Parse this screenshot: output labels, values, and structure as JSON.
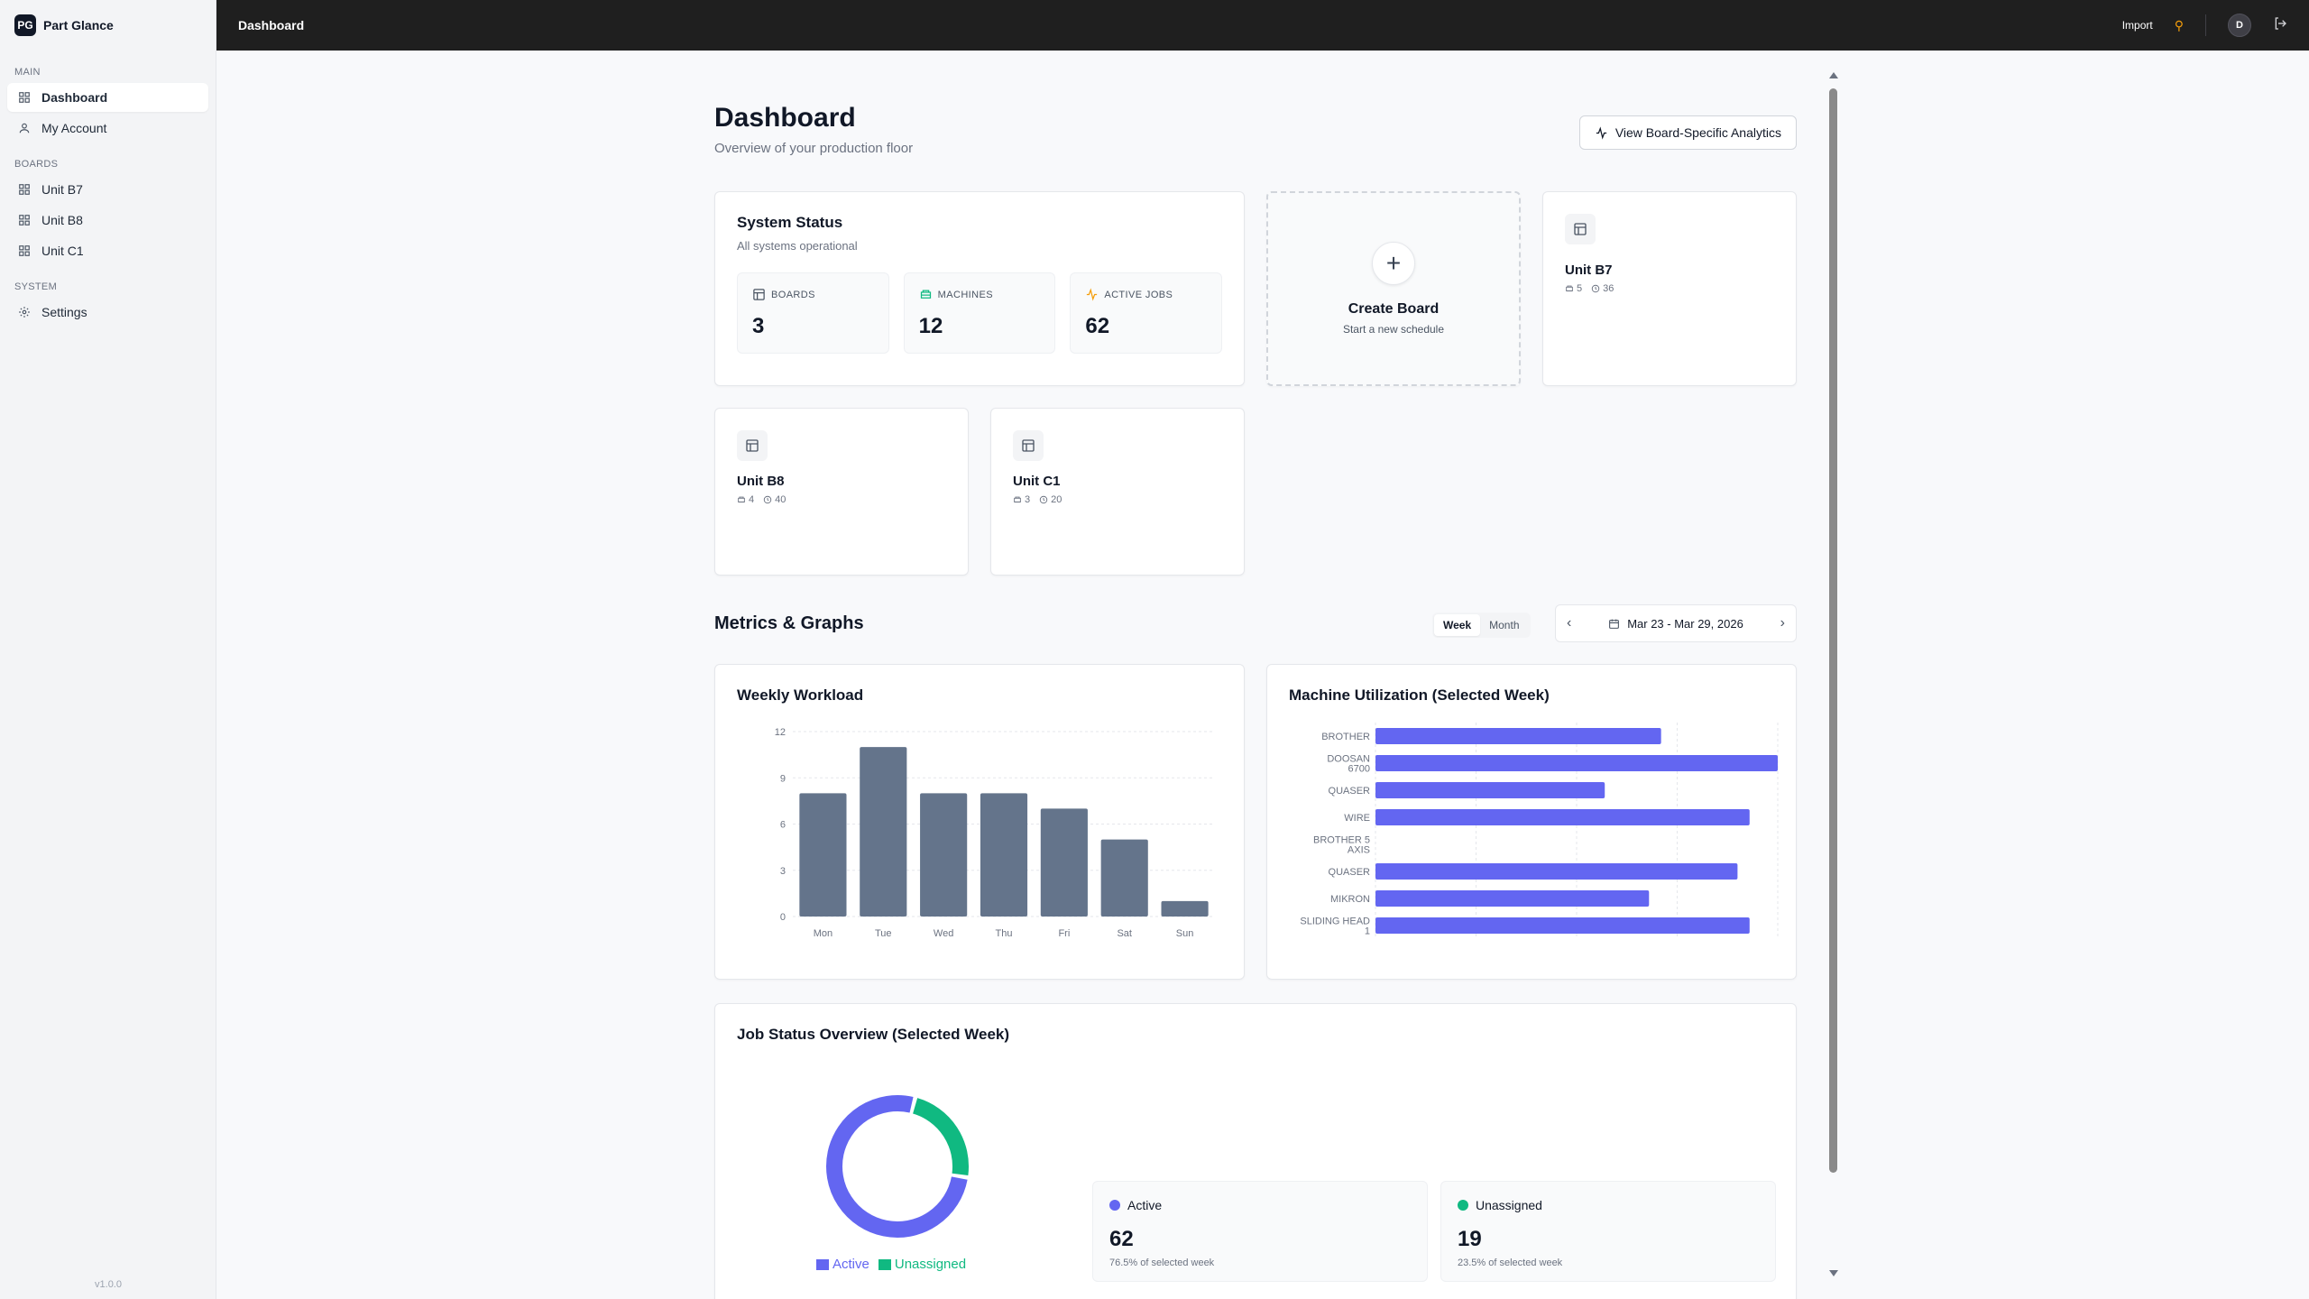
{
  "app": {
    "logo": "PG",
    "name": "Part Glance",
    "version": "v1.0.0"
  },
  "sidebar": {
    "main_label": "MAIN",
    "main_items": [
      {
        "label": "Dashboard",
        "icon": "grid-icon"
      },
      {
        "label": "My Account",
        "icon": "user-icon"
      }
    ],
    "boards_label": "BOARDS",
    "board_items": [
      {
        "label": "Unit B7"
      },
      {
        "label": "Unit B8"
      },
      {
        "label": "Unit C1"
      }
    ],
    "system_label": "SYSTEM",
    "system_items": [
      {
        "label": "Settings",
        "icon": "gear-icon"
      }
    ]
  },
  "topbar": {
    "title": "Dashboard",
    "import_label": "Import",
    "user_initial": "D"
  },
  "page": {
    "title": "Dashboard",
    "subtitle": "Overview of your production floor",
    "analytics_button": "View Board-Specific Analytics"
  },
  "system_status": {
    "title": "System Status",
    "subtitle": "All systems operational",
    "stats": [
      {
        "label": "BOARDS",
        "value": "3",
        "icon": "board-icon",
        "color": "#4b5563"
      },
      {
        "label": "MACHINES",
        "value": "12",
        "icon": "machine-icon",
        "color": "#10b981"
      },
      {
        "label": "ACTIVE JOBS",
        "value": "62",
        "icon": "activity-icon",
        "color": "#f59e0b"
      }
    ]
  },
  "create_board": {
    "title": "Create Board",
    "subtitle": "Start a new schedule"
  },
  "boards": [
    {
      "name": "Unit B7",
      "machines": "5",
      "jobs": "36"
    },
    {
      "name": "Unit B8",
      "machines": "4",
      "jobs": "40"
    },
    {
      "name": "Unit C1",
      "machines": "3",
      "jobs": "20"
    }
  ],
  "metrics": {
    "title": "Metrics & Graphs",
    "toggle": {
      "week": "Week",
      "month": "Month",
      "selected": "Week"
    },
    "date_range": "Mar 23 - Mar 29, 2026"
  },
  "chart_data": [
    {
      "type": "bar",
      "title": "Weekly Workload",
      "categories": [
        "Mon",
        "Tue",
        "Wed",
        "Thu",
        "Fri",
        "Sat",
        "Sun"
      ],
      "values": [
        8,
        11,
        8,
        8,
        7,
        5,
        1
      ],
      "ylim": [
        0,
        12
      ],
      "yticks": [
        0,
        3,
        6,
        9,
        12
      ],
      "color": "#64748b",
      "grid": true
    },
    {
      "type": "bar",
      "orientation": "horizontal",
      "title": "Machine Utilization (Selected Week)",
      "categories": [
        "BROTHER",
        "DOOSAN 6700",
        "QUASER",
        "WIRE",
        "BROTHER 5 AXIS",
        "QUASER",
        "MIKRON",
        "SLIDING HEAD 1"
      ],
      "values": [
        71,
        100,
        57,
        93,
        0,
        90,
        68,
        93
      ],
      "xlim": [
        0,
        100
      ],
      "color": "#6366f1",
      "grid": true
    },
    {
      "type": "pie",
      "title": "Job Status Overview (Selected Week)",
      "labels": [
        "Active",
        "Unassigned"
      ],
      "values": [
        62,
        19
      ],
      "colors": [
        "#6366f1",
        "#10b981"
      ],
      "legend": "bottom"
    }
  ],
  "job_status": {
    "title": "Job Status Overview (Selected Week)",
    "items": [
      {
        "label": "Active",
        "value": "62",
        "pct": "76.5% of selected week",
        "color": "#6366f1"
      },
      {
        "label": "Unassigned",
        "value": "19",
        "pct": "23.5% of selected week",
        "color": "#10b981"
      }
    ]
  }
}
